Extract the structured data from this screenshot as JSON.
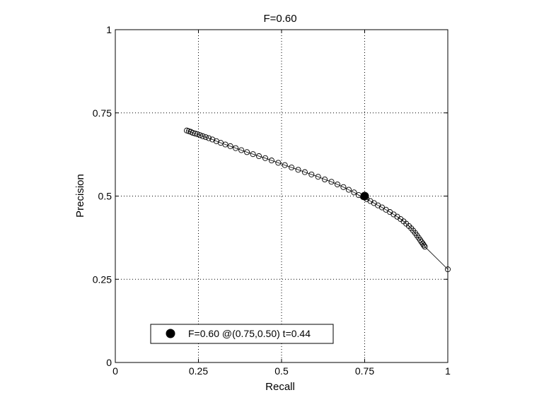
{
  "chart_data": {
    "type": "scatter",
    "title": "F=0.60",
    "xlabel": "Recall",
    "ylabel": "Precision",
    "xlim": [
      0,
      1
    ],
    "ylim": [
      0,
      1
    ],
    "xticks": [
      0,
      0.25,
      0.5,
      0.75,
      1
    ],
    "xtick_labels": [
      "0",
      "0.25",
      "0.5",
      "0.75",
      "1"
    ],
    "yticks": [
      0,
      0.25,
      0.5,
      0.75,
      1
    ],
    "ytick_labels": [
      "0",
      "0.25",
      "0.5",
      "0.75",
      "1"
    ],
    "grid": "dotted",
    "legend_position": "bottom-left",
    "colors": {
      "axes": "#000000",
      "grid": "#000000",
      "marker": "#000000",
      "background": "#ffffff"
    },
    "series": [
      {
        "marker": "open-circle",
        "line": "thin-solid",
        "points": [
          [
            0.215,
            0.697
          ],
          [
            0.221,
            0.695
          ],
          [
            0.227,
            0.693
          ],
          [
            0.233,
            0.69
          ],
          [
            0.24,
            0.688
          ],
          [
            0.247,
            0.686
          ],
          [
            0.255,
            0.683
          ],
          [
            0.263,
            0.68
          ],
          [
            0.272,
            0.677
          ],
          [
            0.281,
            0.674
          ],
          [
            0.292,
            0.67
          ],
          [
            0.304,
            0.665
          ],
          [
            0.317,
            0.66
          ],
          [
            0.331,
            0.655
          ],
          [
            0.346,
            0.65
          ],
          [
            0.362,
            0.644
          ],
          [
            0.379,
            0.638
          ],
          [
            0.396,
            0.632
          ],
          [
            0.414,
            0.626
          ],
          [
            0.432,
            0.62
          ],
          [
            0.451,
            0.614
          ],
          [
            0.47,
            0.607
          ],
          [
            0.49,
            0.6
          ],
          [
            0.51,
            0.593
          ],
          [
            0.53,
            0.586
          ],
          [
            0.55,
            0.579
          ],
          [
            0.57,
            0.572
          ],
          [
            0.59,
            0.565
          ],
          [
            0.61,
            0.558
          ],
          [
            0.63,
            0.55
          ],
          [
            0.65,
            0.543
          ],
          [
            0.668,
            0.535
          ],
          [
            0.686,
            0.527
          ],
          [
            0.702,
            0.519
          ],
          [
            0.718,
            0.511
          ],
          [
            0.732,
            0.503
          ],
          [
            0.745,
            0.497
          ],
          [
            0.756,
            0.491
          ],
          [
            0.767,
            0.485
          ],
          [
            0.778,
            0.479
          ],
          [
            0.79,
            0.472
          ],
          [
            0.802,
            0.466
          ],
          [
            0.814,
            0.459
          ],
          [
            0.826,
            0.452
          ],
          [
            0.837,
            0.445
          ],
          [
            0.848,
            0.438
          ],
          [
            0.858,
            0.431
          ],
          [
            0.867,
            0.424
          ],
          [
            0.875,
            0.417
          ],
          [
            0.883,
            0.41
          ],
          [
            0.89,
            0.403
          ],
          [
            0.896,
            0.396
          ],
          [
            0.902,
            0.389
          ],
          [
            0.907,
            0.382
          ],
          [
            0.912,
            0.375
          ],
          [
            0.917,
            0.368
          ],
          [
            0.921,
            0.362
          ],
          [
            0.925,
            0.357
          ],
          [
            0.928,
            0.352
          ],
          [
            0.931,
            0.348
          ],
          [
            1.0,
            0.28
          ]
        ]
      }
    ],
    "highlight": {
      "x": 0.75,
      "y": 0.5,
      "marker": "filled-circle",
      "label": "F=0.60 @(0.75,0.50) t=0.44"
    }
  }
}
